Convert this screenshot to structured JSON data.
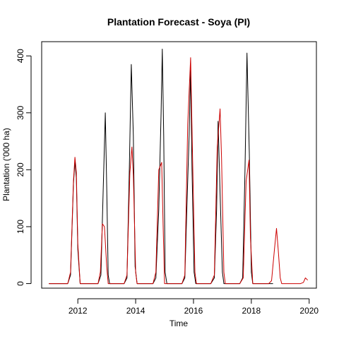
{
  "chart_data": {
    "type": "line",
    "title": "Plantation Forecast - Soya (PI)",
    "xlabel": "Time",
    "ylabel": "Plantation ('000 ha)",
    "xlim": [
      2010.75,
      2020.25
    ],
    "ylim": [
      -8,
      425
    ],
    "xticks": [
      2012,
      2014,
      2016,
      2018,
      2020
    ],
    "yticks": [
      0,
      100,
      200,
      300,
      400
    ],
    "grid": false,
    "legend": "none",
    "series": [
      {
        "color": "#000000",
        "points": [
          [
            2011.0,
            0
          ],
          [
            2011.5,
            0
          ],
          [
            2011.65,
            0
          ],
          [
            2011.75,
            15
          ],
          [
            2011.85,
            175
          ],
          [
            2011.9,
            215
          ],
          [
            2011.95,
            185
          ],
          [
            2012.0,
            60
          ],
          [
            2012.08,
            0
          ],
          [
            2012.6,
            0
          ],
          [
            2012.7,
            0
          ],
          [
            2012.8,
            15
          ],
          [
            2012.87,
            150
          ],
          [
            2012.95,
            300
          ],
          [
            2013.0,
            170
          ],
          [
            2013.05,
            15
          ],
          [
            2013.1,
            0
          ],
          [
            2013.6,
            0
          ],
          [
            2013.7,
            10
          ],
          [
            2013.78,
            200
          ],
          [
            2013.85,
            385
          ],
          [
            2013.92,
            260
          ],
          [
            2013.98,
            30
          ],
          [
            2014.05,
            0
          ],
          [
            2014.6,
            0
          ],
          [
            2014.7,
            10
          ],
          [
            2014.8,
            130
          ],
          [
            2014.88,
            300
          ],
          [
            2014.92,
            412
          ],
          [
            2014.97,
            260
          ],
          [
            2015.02,
            20
          ],
          [
            2015.08,
            0
          ],
          [
            2015.6,
            0
          ],
          [
            2015.7,
            10
          ],
          [
            2015.78,
            150
          ],
          [
            2015.85,
            260
          ],
          [
            2015.9,
            375
          ],
          [
            2015.95,
            200
          ],
          [
            2016.02,
            20
          ],
          [
            2016.08,
            0
          ],
          [
            2016.6,
            0
          ],
          [
            2016.72,
            10
          ],
          [
            2016.8,
            130
          ],
          [
            2016.85,
            285
          ],
          [
            2016.92,
            160
          ],
          [
            2017.0,
            20
          ],
          [
            2017.05,
            0
          ],
          [
            2017.6,
            0
          ],
          [
            2017.7,
            10
          ],
          [
            2017.78,
            200
          ],
          [
            2017.85,
            405
          ],
          [
            2017.93,
            230
          ],
          [
            2018.0,
            20
          ],
          [
            2018.05,
            0
          ],
          [
            2018.6,
            0
          ],
          [
            2018.75,
            0
          ]
        ]
      },
      {
        "color": "#cc0000",
        "points": [
          [
            2011.0,
            0
          ],
          [
            2011.5,
            0
          ],
          [
            2011.65,
            0
          ],
          [
            2011.75,
            20
          ],
          [
            2011.85,
            180
          ],
          [
            2011.9,
            222
          ],
          [
            2011.95,
            195
          ],
          [
            2012.0,
            70
          ],
          [
            2012.08,
            0
          ],
          [
            2012.6,
            0
          ],
          [
            2012.7,
            0
          ],
          [
            2012.78,
            20
          ],
          [
            2012.85,
            105
          ],
          [
            2012.92,
            100
          ],
          [
            2013.0,
            30
          ],
          [
            2013.05,
            0
          ],
          [
            2013.6,
            0
          ],
          [
            2013.7,
            15
          ],
          [
            2013.8,
            195
          ],
          [
            2013.87,
            240
          ],
          [
            2013.92,
            190
          ],
          [
            2014.0,
            20
          ],
          [
            2014.05,
            0
          ],
          [
            2014.6,
            0
          ],
          [
            2014.7,
            20
          ],
          [
            2014.8,
            200
          ],
          [
            2014.9,
            213
          ],
          [
            2014.95,
            100
          ],
          [
            2015.0,
            0
          ],
          [
            2015.6,
            0
          ],
          [
            2015.7,
            15
          ],
          [
            2015.8,
            280
          ],
          [
            2015.9,
            397
          ],
          [
            2015.97,
            220
          ],
          [
            2016.05,
            20
          ],
          [
            2016.1,
            0
          ],
          [
            2016.6,
            0
          ],
          [
            2016.72,
            15
          ],
          [
            2016.82,
            240
          ],
          [
            2016.92,
            307
          ],
          [
            2016.97,
            220
          ],
          [
            2017.05,
            20
          ],
          [
            2017.1,
            0
          ],
          [
            2017.6,
            0
          ],
          [
            2017.72,
            10
          ],
          [
            2017.82,
            180
          ],
          [
            2017.92,
            217
          ],
          [
            2017.97,
            80
          ],
          [
            2018.05,
            0
          ],
          [
            2018.6,
            0
          ],
          [
            2018.7,
            5
          ],
          [
            2018.8,
            60
          ],
          [
            2018.87,
            97
          ],
          [
            2018.93,
            60
          ],
          [
            2019.0,
            10
          ],
          [
            2019.05,
            0
          ],
          [
            2019.6,
            0
          ],
          [
            2019.7,
            0
          ],
          [
            2019.8,
            2
          ],
          [
            2019.87,
            10
          ],
          [
            2019.95,
            6
          ]
        ]
      }
    ]
  }
}
